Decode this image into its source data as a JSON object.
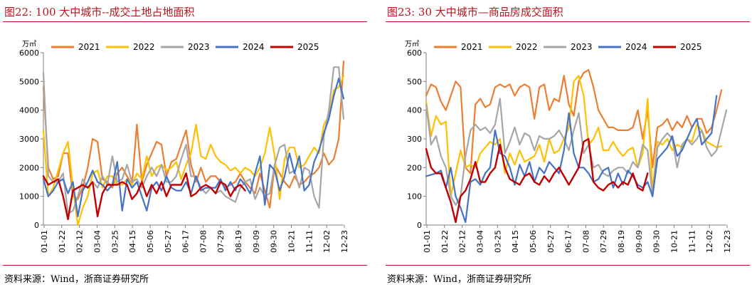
{
  "charts": [
    {
      "title": "图22:   100 大中城市--成交土地占地面积",
      "source": "资料来源：Wind，浙商证券研究所",
      "unit": "万㎡",
      "chart_data": {
        "type": "line",
        "xticks": [
          "01-01",
          "01-22",
          "02-12",
          "03-04",
          "03-25",
          "04-15",
          "05-06",
          "05-27",
          "06-17",
          "07-08",
          "07-29",
          "08-19",
          "09-09",
          "09-30",
          "10-21",
          "11-11",
          "12-02",
          "12-23"
        ],
        "yticks": [
          "0",
          "1000",
          "2000",
          "3000",
          "4000",
          "5000",
          "6000"
        ],
        "ylim": [
          0,
          6000
        ],
        "legend_position": "top",
        "grid": false,
        "series": [
          {
            "name": "2021",
            "color": "#ed7d31",
            "values": [
              4800,
              2000,
              1600,
              1700,
              2500,
              2500,
              1000,
              900,
              1300,
              2000,
              3000,
              2900,
              1600,
              1500,
              1300,
              1800,
              2000,
              1700,
              1400,
              3500,
              1500,
              2100,
              2500,
              2900,
              2800,
              1700,
              2200,
              2300,
              2800,
              3300,
              2100,
              1500,
              2000,
              1500,
              1700,
              1700,
              1500,
              1300,
              1400,
              1500,
              1800,
              1500,
              1300,
              1100,
              1800,
              1200,
              600,
              2100,
              1800,
              1500,
              1300,
              1700,
              1400,
              1500,
              1700,
              1800,
              2000,
              2500,
              2100,
              2300,
              3000,
              5700
            ]
          },
          {
            "name": "2022",
            "color": "#ffc000",
            "values": [
              3300,
              1000,
              1300,
              1900,
              2500,
              2900,
              1300,
              0,
              600,
              1000,
              1800,
              1900,
              1300,
              1700,
              1700,
              1400,
              1400,
              1600,
              1400,
              1800,
              1600,
              2400,
              1700,
              2000,
              2100,
              1900,
              2000,
              2200,
              1600,
              2100,
              2500,
              3500,
              2400,
              2300,
              2800,
              2400,
              2200,
              2100,
              1900,
              2000,
              1800,
              2000,
              1900,
              1700,
              2000,
              2500,
              3400,
              2400,
              900,
              2300,
              2700,
              2700,
              2000,
              2100,
              2400,
              2700,
              2500,
              3500,
              3800,
              4700,
              4800,
              5200
            ]
          },
          {
            "name": "2023",
            "color": "#a6a6a6",
            "values": [
              5300,
              1700,
              1500,
              1500,
              1800,
              400,
              500,
              1000,
              1600,
              1300,
              1500,
              1300,
              1700,
              1400,
              2400,
              1500,
              1600,
              2100,
              1500,
              1600,
              1300,
              1700,
              2000,
              1700,
              2100,
              1500,
              1500,
              1700,
              2300,
              2800,
              1700,
              1700,
              1300,
              1100,
              1300,
              1100,
              1200,
              1000,
              900,
              800,
              1300,
              1500,
              1600,
              900,
              1300,
              1000,
              1100,
              2100,
              2700,
              2800,
              1800,
              1900,
              1300,
              2000,
              1900,
              1000,
              600,
              3100,
              4000,
              5500,
              5500,
              3700
            ]
          },
          {
            "name": "2024",
            "color": "#4472c4",
            "values": [
              1600,
              1000,
              1200,
              1500,
              1600,
              1100,
              1500,
              300,
              1200,
              1500,
              1900,
              1500,
              1400,
              1200,
              1400,
              2200,
              500,
              1600,
              1300,
              1500,
              1000,
              500,
              1300,
              1500,
              1200,
              1700,
              1300,
              1200,
              1200,
              1500,
              1100,
              1700,
              1200,
              1300,
              1300,
              1300,
              1600,
              1200,
              1500,
              1200,
              1600,
              1400,
              1100,
              1800,
              2400,
              700,
              2100,
              1900,
              1200,
              1700,
              2500,
              1800,
              2400,
              1200,
              1400,
              2200,
              2600,
              3200,
              3700,
              4500,
              5100,
              4400
            ]
          },
          {
            "name": "2025",
            "color": "#c00000",
            "values": [
              1700,
              1400,
              1500,
              1600,
              1000,
              200,
              1200,
              1300,
              1400,
              1300,
              1500,
              300,
              1100,
              1400,
              1400,
              1400,
              1500,
              1400,
              900,
              1100,
              1500,
              1000,
              1400,
              1100,
              1500,
              1000,
              1400,
              1400,
              1400,
              1800,
              1000,
              1100,
              1300,
              1400,
              1300,
              1100,
              1500,
              1400,
              1000,
              1300,
              1400,
              1200
            ]
          }
        ]
      }
    },
    {
      "title": "图23:   30 大中城市—商品房成交面积",
      "source": "资料来源：Wind，浙商证券研究所",
      "unit": "万㎡",
      "chart_data": {
        "type": "line",
        "xticks": [
          "01-01",
          "01-22",
          "02-12",
          "03-04",
          "03-25",
          "04-15",
          "05-06",
          "05-27",
          "06-17",
          "07-08",
          "07-29",
          "08-19",
          "09-09",
          "09-30",
          "10-21",
          "11-11",
          "12-02",
          "12-23"
        ],
        "yticks": [
          "0",
          "100",
          "200",
          "300",
          "400",
          "500",
          "600"
        ],
        "ylim": [
          0,
          600
        ],
        "legend_position": "top",
        "grid": false,
        "series": [
          {
            "name": "2021",
            "color": "#ed7d31",
            "values": [
              450,
              490,
              480,
              430,
              400,
              450,
              500,
              480,
              200,
              180,
              420,
              440,
              410,
              420,
              480,
              490,
              480,
              490,
              450,
              480,
              490,
              480,
              370,
              480,
              490,
              400,
              440,
              430,
              520,
              420,
              380,
              500,
              530,
              540,
              480,
              400,
              370,
              340,
              340,
              330,
              330,
              330,
              340,
              400,
              300,
              400,
              200,
              340,
              350,
              370,
              330,
              360,
              340,
              380,
              340,
              370,
              370,
              320,
              340,
              400,
              470
            ]
          },
          {
            "name": "2022",
            "color": "#ffc000",
            "values": [
              430,
              310,
              380,
              350,
              360,
              100,
              180,
              260,
              200,
              210,
              200,
              250,
              270,
              290,
              280,
              300,
              180,
              250,
              210,
              260,
              220,
              230,
              240,
              280,
              220,
              300,
              250,
              260,
              300,
              340,
              500,
              520,
              450,
              280,
              300,
              340,
              260,
              260,
              290,
              260,
              240,
              260,
              270,
              200,
              250,
              440,
              120,
              290,
              280,
              300,
              260,
              280,
              270,
              300,
              290,
              350,
              330,
              290,
              280,
              270,
              275
            ]
          },
          {
            "name": "2023",
            "color": "#a6a6a6",
            "values": [
              420,
              280,
              310,
              240,
              200,
              100,
              70,
              100,
              240,
              330,
              350,
              330,
              340,
              320,
              350,
              440,
              250,
              290,
              340,
              280,
              320,
              310,
              260,
              310,
              300,
              300,
              310,
              330,
              300,
              260,
              330,
              390,
              250,
              280,
              200,
              210,
              180,
              170,
              190,
              200,
              200,
              180,
              220,
              200,
              280,
              260,
              100,
              270,
              300,
              320,
              300,
              200,
              280,
              300,
              280,
              300,
              330,
              270,
              240,
              260,
              330,
              400
            ]
          },
          {
            "name": "2024",
            "color": "#4472c4",
            "values": [
              170,
              175,
              180,
              190,
              130,
              200,
              100,
              60,
              10,
              150,
              160,
              140,
              180,
              200,
              330,
              250,
              240,
              200,
              140,
              210,
              170,
              220,
              150,
              200,
              180,
              220,
              200,
              180,
              260,
              390,
              250,
              200,
              200,
              180,
              150,
              160,
              190,
              200,
              130,
              180,
              140,
              190,
              170,
              140,
              130,
              150,
              100,
              230,
              250,
              270,
              310,
              240,
              260,
              300,
              340,
              370,
              280,
              300,
              320,
              450
            ]
          },
          {
            "name": "2025",
            "color": "#c00000",
            "values": [
              265,
              200,
              180,
              180,
              130,
              80,
              10,
              100,
              120,
              160,
              220,
              150,
              150,
              180,
              200,
              280,
              200,
              160,
              150,
              140,
              170,
              180,
              150,
              140,
              170,
              150,
              180,
              200,
              170,
              140,
              170,
              200,
              290,
              300,
              150,
              130,
              120,
              140,
              150,
              130,
              150,
              140,
              180,
              130,
              120,
              180
            ]
          }
        ]
      }
    }
  ]
}
